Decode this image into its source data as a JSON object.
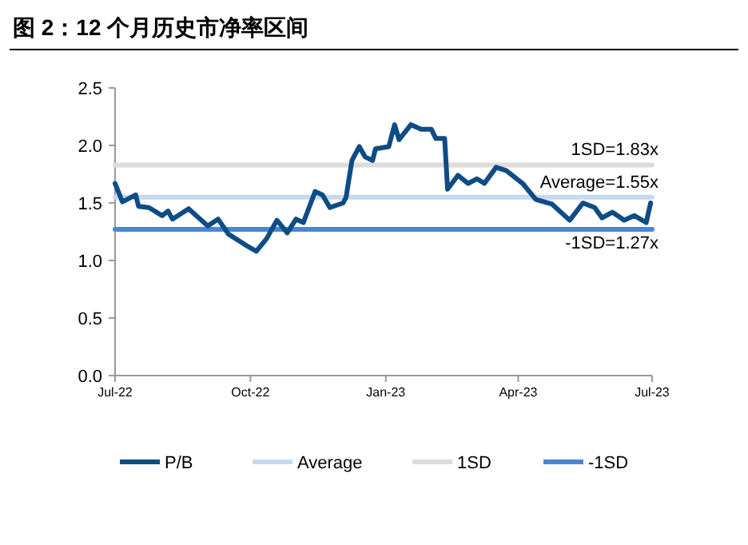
{
  "chart_data": {
    "type": "line",
    "title": "图 2：12 个月历史市净率区间",
    "xlim": [
      "2022-07-01",
      "2023-07-01"
    ],
    "xticks": [
      {
        "value": "2022-07-01",
        "label": "Jul-22"
      },
      {
        "value": "2022-10-01",
        "label": "Oct-22"
      },
      {
        "value": "2023-01-01",
        "label": "Jan-23"
      },
      {
        "value": "2023-04-01",
        "label": "Apr-23"
      },
      {
        "value": "2023-07-01",
        "label": "Jul-23"
      }
    ],
    "ylim": [
      0,
      2.5
    ],
    "yticks": [
      {
        "value": 0,
        "label": "0.0"
      },
      {
        "value": 0.5,
        "label": "0.5"
      },
      {
        "value": 1,
        "label": "1.0"
      },
      {
        "value": 1.5,
        "label": "1.5"
      },
      {
        "value": 2,
        "label": "2.0"
      },
      {
        "value": 2.5,
        "label": "2.5"
      }
    ],
    "grid": false,
    "legend": "bottom",
    "series": [
      {
        "name": "P/B",
        "color": "#0e4c86",
        "x": [
          "2022-07-01",
          "2022-07-06",
          "2022-07-15",
          "2022-07-17",
          "2022-07-24",
          "2022-08-02",
          "2022-08-06",
          "2022-08-09",
          "2022-08-20",
          "2022-09-02",
          "2022-09-09",
          "2022-09-16",
          "2022-09-27",
          "2022-10-05",
          "2022-10-12",
          "2022-10-19",
          "2022-10-26",
          "2022-11-01",
          "2022-11-06",
          "2022-11-14",
          "2022-11-19",
          "2022-11-24",
          "2022-12-03",
          "2022-12-05",
          "2022-12-09",
          "2022-12-14",
          "2022-12-18",
          "2022-12-23",
          "2022-12-25",
          "2023-01-03",
          "2023-01-07",
          "2023-01-10",
          "2023-01-18",
          "2023-01-25",
          "2023-02-01",
          "2023-02-04",
          "2023-02-10",
          "2023-02-12",
          "2023-02-19",
          "2023-02-26",
          "2023-03-04",
          "2023-03-09",
          "2023-03-17",
          "2023-03-24",
          "2023-04-04",
          "2023-04-13",
          "2023-04-24",
          "2023-05-06",
          "2023-05-15",
          "2023-05-23",
          "2023-05-28",
          "2023-06-04",
          "2023-06-12",
          "2023-06-19",
          "2023-06-27",
          "2023-06-30"
        ],
        "values": [
          1.67,
          1.51,
          1.57,
          1.47,
          1.46,
          1.39,
          1.43,
          1.36,
          1.45,
          1.3,
          1.36,
          1.23,
          1.14,
          1.08,
          1.19,
          1.35,
          1.24,
          1.36,
          1.33,
          1.6,
          1.57,
          1.46,
          1.5,
          1.55,
          1.87,
          1.99,
          1.9,
          1.87,
          1.97,
          1.99,
          2.18,
          2.05,
          2.18,
          2.14,
          2.14,
          2.06,
          2.06,
          1.62,
          1.74,
          1.67,
          1.71,
          1.67,
          1.81,
          1.78,
          1.67,
          1.53,
          1.49,
          1.35,
          1.5,
          1.46,
          1.37,
          1.42,
          1.35,
          1.39,
          1.33,
          1.5
        ]
      },
      {
        "name": "Average",
        "color": "#c6d9f1",
        "x": [
          "2022-07-01",
          "2023-07-01"
        ],
        "values": [
          1.55,
          1.55
        ]
      },
      {
        "name": "1SD",
        "color": "#dcdcdc",
        "x": [
          "2022-07-01",
          "2023-07-01"
        ],
        "values": [
          1.83,
          1.83
        ]
      },
      {
        "name": "-1SD",
        "color": "#4a86d4",
        "x": [
          "2022-07-01",
          "2023-07-01"
        ],
        "values": [
          1.27,
          1.27
        ]
      }
    ],
    "annotations": [
      {
        "text": "1SD=1.83x",
        "x": "2023-07-01",
        "y": 1.83
      },
      {
        "text": "Average=1.55x",
        "x": "2023-07-01",
        "y": 1.55
      },
      {
        "text": "-1SD=1.27x",
        "x": "2023-07-01",
        "y": 1.27
      }
    ]
  }
}
